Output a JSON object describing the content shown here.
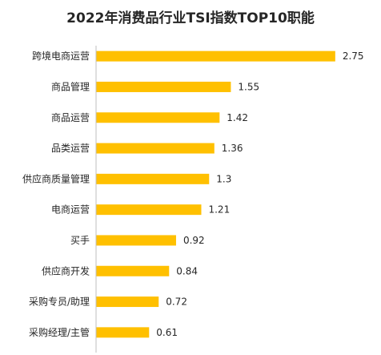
{
  "chart_data": {
    "type": "bar",
    "orientation": "horizontal",
    "title": "2022年消费品行业TSI指数TOP10职能",
    "categories": [
      "跨境电商运营",
      "商品管理",
      "商品运营",
      "品类运营",
      "供应商质量管理",
      "电商运营",
      "买手",
      "供应商开发",
      "采购专员/助理",
      "采购经理/主管"
    ],
    "values": [
      2.75,
      1.55,
      1.42,
      1.36,
      1.3,
      1.21,
      0.92,
      0.84,
      0.72,
      0.61
    ],
    "value_labels": [
      "2.75",
      "1.55",
      "1.42",
      "1.36",
      "1.3",
      "1.21",
      "0.92",
      "0.84",
      "0.72",
      "0.61"
    ],
    "xlim": [
      0,
      3
    ],
    "grid": false,
    "legend": "none",
    "bar_color": "#FFC000",
    "axis_color": "#BFBFBF",
    "text_color": "#262626"
  }
}
